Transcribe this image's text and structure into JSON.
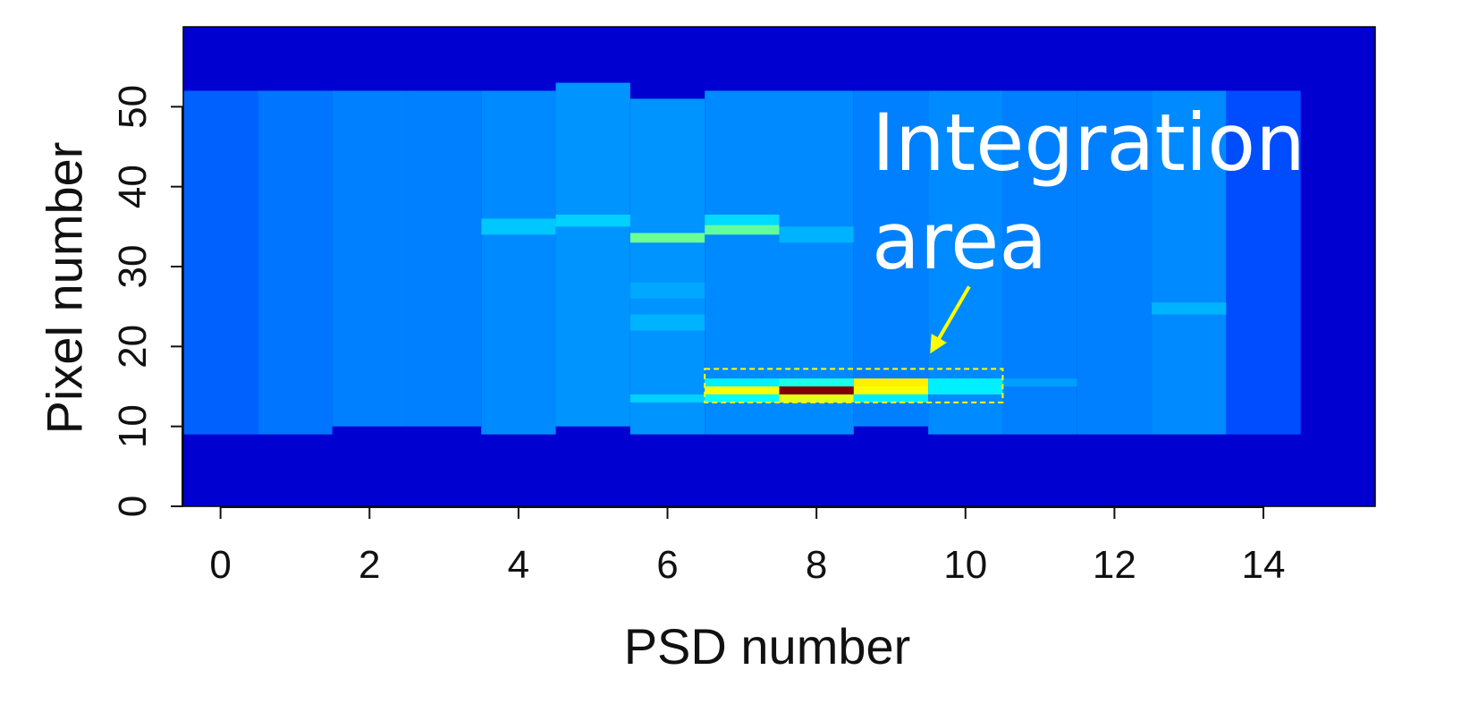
{
  "chart_data": {
    "type": "heatmap",
    "xlabel": "PSD number",
    "ylabel": "Pixel number",
    "xlim": [
      -0.5,
      15.5
    ],
    "ylim": [
      0,
      60
    ],
    "x_ticks": [
      "0",
      "2",
      "4",
      "6",
      "8",
      "10",
      "12",
      "14"
    ],
    "y_ticks": [
      "0",
      "10",
      "20",
      "30",
      "40",
      "50"
    ],
    "grid": false,
    "legend": "none",
    "colormap": "jet",
    "background_level": 0.08,
    "active_band": {
      "y_range": [
        9,
        52
      ],
      "columns": [
        {
          "psd": 0,
          "y_range": [
            9,
            52
          ],
          "level": 0.22
        },
        {
          "psd": 1,
          "y_range": [
            9,
            52
          ],
          "level": 0.24
        },
        {
          "psd": 2,
          "y_range": [
            10,
            52
          ],
          "level": 0.25
        },
        {
          "psd": 3,
          "y_range": [
            10,
            52
          ],
          "level": 0.25
        },
        {
          "psd": 4,
          "y_range": [
            9,
            52
          ],
          "level": 0.26
        },
        {
          "psd": 5,
          "y_range": [
            10,
            53
          ],
          "level": 0.27
        },
        {
          "psd": 6,
          "y_range": [
            9,
            51
          ],
          "level": 0.27
        },
        {
          "psd": 7,
          "y_range": [
            9,
            52
          ],
          "level": 0.26
        },
        {
          "psd": 8,
          "y_range": [
            9,
            52
          ],
          "level": 0.26
        },
        {
          "psd": 9,
          "y_range": [
            10,
            52
          ],
          "level": 0.25
        },
        {
          "psd": 10,
          "y_range": [
            9,
            52
          ],
          "level": 0.26
        },
        {
          "psd": 11,
          "y_range": [
            9,
            52
          ],
          "level": 0.25
        },
        {
          "psd": 12,
          "y_range": [
            9,
            52
          ],
          "level": 0.25
        },
        {
          "psd": 13,
          "y_range": [
            9,
            52
          ],
          "level": 0.26
        },
        {
          "psd": 14,
          "y_range": [
            9,
            52
          ],
          "level": 0.2
        }
      ]
    },
    "hot_cells": [
      {
        "psd": 4,
        "y_range": [
          34,
          36
        ],
        "level": 0.32
      },
      {
        "psd": 5,
        "y_range": [
          35,
          36.5
        ],
        "level": 0.33
      },
      {
        "psd": 6,
        "y_range": [
          33,
          34.2
        ],
        "level": 0.48
      },
      {
        "psd": 7,
        "y_range": [
          34,
          35.2
        ],
        "level": 0.47
      },
      {
        "psd": 7,
        "y_range": [
          35.2,
          36.5
        ],
        "level": 0.34
      },
      {
        "psd": 8,
        "y_range": [
          33,
          35
        ],
        "level": 0.3
      },
      {
        "psd": 6,
        "y_range": [
          22,
          24
        ],
        "level": 0.3
      },
      {
        "psd": 6,
        "y_range": [
          26,
          28
        ],
        "level": 0.29
      },
      {
        "psd": 13,
        "y_range": [
          24,
          25.5
        ],
        "level": 0.3
      },
      {
        "psd": 6,
        "y_range": [
          13,
          14
        ],
        "level": 0.33
      },
      {
        "psd": 7,
        "y_range": [
          15,
          16
        ],
        "level": 0.36
      },
      {
        "psd": 7,
        "y_range": [
          14,
          15
        ],
        "level": 0.62
      },
      {
        "psd": 7,
        "y_range": [
          13,
          14
        ],
        "level": 0.38
      },
      {
        "psd": 8,
        "y_range": [
          15,
          16
        ],
        "level": 0.4
      },
      {
        "psd": 8,
        "y_range": [
          14,
          15
        ],
        "level": 1.0
      },
      {
        "psd": 8,
        "y_range": [
          13,
          14
        ],
        "level": 0.6
      },
      {
        "psd": 9,
        "y_range": [
          15,
          16
        ],
        "level": 0.64
      },
      {
        "psd": 9,
        "y_range": [
          14,
          15
        ],
        "level": 0.62
      },
      {
        "psd": 9,
        "y_range": [
          13,
          14
        ],
        "level": 0.36
      },
      {
        "psd": 10,
        "y_range": [
          15,
          16
        ],
        "level": 0.36
      },
      {
        "psd": 10,
        "y_range": [
          14,
          15
        ],
        "level": 0.36
      },
      {
        "psd": 11,
        "y_range": [
          15,
          16
        ],
        "level": 0.28
      }
    ],
    "annotations": [
      {
        "text": "Integration area",
        "lines": [
          "Integration",
          "area"
        ],
        "arrow_from": [
          10.05,
          27.5
        ],
        "arrow_to": [
          9.55,
          19.5
        ]
      }
    ],
    "integration_box": {
      "x_range": [
        6.5,
        10.5
      ],
      "y_range": [
        13,
        17.2
      ],
      "color": "#ffff00"
    },
    "colors": {
      "arrow": "#ffff00",
      "box": "#ffff00",
      "annotation_text": "#ffffff"
    }
  }
}
